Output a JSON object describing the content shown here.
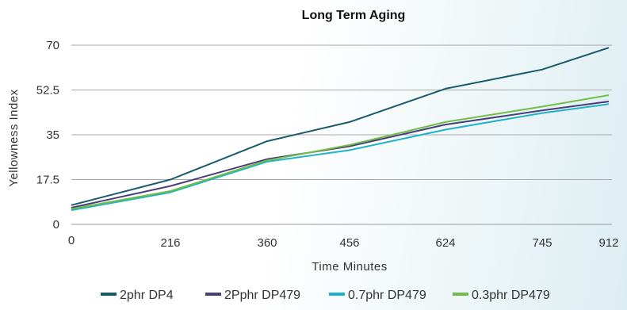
{
  "chart_data": {
    "type": "line",
    "title": "Long Term Aging",
    "xlabel": "Time Minutes",
    "ylabel": "Yellowness Index",
    "categories": [
      "0",
      "216",
      "360",
      "456",
      "624",
      "745",
      "912"
    ],
    "yticks": [
      "0",
      "17.5",
      "35",
      "52.5",
      "70"
    ],
    "ylim": [
      0,
      70
    ],
    "grid": true,
    "legend": "bottom",
    "series": [
      {
        "name": "2phr DP4",
        "color": "#1a5a6e",
        "values": [
          7.5,
          17.5,
          32.5,
          40,
          53,
          60.5,
          69
        ]
      },
      {
        "name": "2Pphr DP479",
        "color": "#4b3d79",
        "values": [
          6.5,
          15,
          25.5,
          30.5,
          39,
          44.5,
          48
        ]
      },
      {
        "name": "0.7phr DP479",
        "color": "#20b2c6",
        "values": [
          5.5,
          12.5,
          24.5,
          29,
          37,
          43.5,
          47
        ]
      },
      {
        "name": "0.3phr DP479",
        "color": "#72bd46",
        "values": [
          6,
          13,
          25,
          31,
          40,
          46,
          50.5
        ]
      }
    ]
  }
}
